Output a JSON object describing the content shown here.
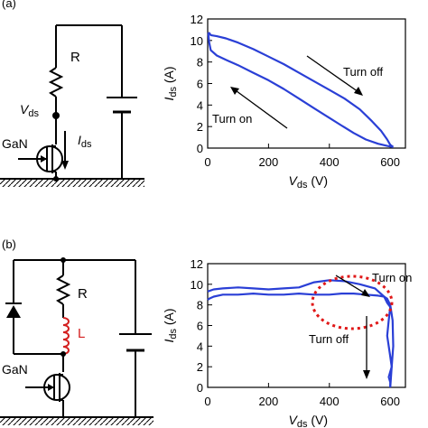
{
  "panel_a": {
    "label": "(a)",
    "circuit": {
      "resistor": "R",
      "node_voltage": "V",
      "node_voltage_sub": "ds",
      "device": "GaN",
      "current": "I",
      "current_sub": "ds"
    }
  },
  "panel_b": {
    "label": "(b)",
    "circuit": {
      "resistor": "R",
      "inductor": "L",
      "device": "GaN"
    }
  },
  "colors": {
    "trace": "#2a3fd6",
    "inductor": "#d42020",
    "highlight": "#e01818",
    "axis": "#000000"
  },
  "chart_data": [
    {
      "type": "line",
      "xlabel": "V",
      "xlabel_sub": "ds",
      "xlabel_unit": "(V)",
      "ylabel": "I",
      "ylabel_sub": "ds",
      "ylabel_unit": "(A)",
      "xlim": [
        0,
        650
      ],
      "ylim": [
        0,
        12
      ],
      "xticks": [
        0,
        200,
        400,
        600
      ],
      "yticks": [
        0,
        2,
        4,
        6,
        8,
        10,
        12
      ],
      "annotations": [
        "Turn off",
        "Turn on"
      ],
      "series": [
        {
          "x": [
            0,
            5,
            10,
            30,
            60,
            100,
            150,
            200,
            250,
            300,
            350,
            400,
            450,
            500,
            540,
            570,
            590,
            600,
            610
          ],
          "y": [
            10.6,
            10.7,
            10.5,
            10.4,
            10.2,
            9.8,
            9.2,
            8.5,
            7.8,
            7.0,
            6.2,
            5.4,
            4.6,
            3.6,
            2.5,
            1.6,
            0.8,
            0.3,
            0.1
          ]
        },
        {
          "x": [
            610,
            590,
            560,
            520,
            480,
            440,
            400,
            350,
            300,
            250,
            200,
            150,
            100,
            60,
            30,
            10,
            5,
            2
          ],
          "y": [
            0.1,
            0.2,
            0.4,
            0.8,
            1.4,
            2.1,
            2.8,
            3.7,
            4.6,
            5.5,
            6.3,
            7.0,
            7.7,
            8.2,
            8.6,
            9.1,
            9.8,
            10.6
          ]
        }
      ]
    },
    {
      "type": "line",
      "xlabel": "V",
      "xlabel_sub": "ds",
      "xlabel_unit": "(V)",
      "ylabel": "I",
      "ylabel_sub": "ds",
      "ylabel_unit": "(A)",
      "xlim": [
        0,
        650
      ],
      "ylim": [
        0,
        12
      ],
      "xticks": [
        0,
        200,
        400,
        600
      ],
      "yticks": [
        0,
        2,
        4,
        6,
        8,
        10,
        12
      ],
      "annotations": [
        "Turn on",
        "Turn off"
      ],
      "series": [
        {
          "x": [
            0,
            20,
            50,
            100,
            150,
            200,
            250,
            300,
            350,
            400,
            450,
            500,
            550,
            580,
            590,
            600
          ],
          "y": [
            9.3,
            9.5,
            9.6,
            9.7,
            9.6,
            9.5,
            9.6,
            9.7,
            10.2,
            10.4,
            10.3,
            10.0,
            9.6,
            8.8,
            8.2,
            7.8
          ]
        },
        {
          "x": [
            600,
            595,
            590,
            595,
            600,
            605,
            595,
            600,
            600
          ],
          "y": [
            7.8,
            6.5,
            5.0,
            4.0,
            3.0,
            2.0,
            1.0,
            0.5,
            0
          ]
        },
        {
          "x": [
            600,
            605,
            610,
            608,
            600,
            590,
            580,
            560,
            520,
            480,
            440,
            400,
            350,
            300,
            250,
            200,
            150,
            100,
            50,
            20,
            5,
            0
          ],
          "y": [
            0,
            2.0,
            4.0,
            6.5,
            8.0,
            8.6,
            8.8,
            8.9,
            9.0,
            9.1,
            9.1,
            9.0,
            9.0,
            9.1,
            9.0,
            9.0,
            9.1,
            9.0,
            9.0,
            8.8,
            8.6,
            8.5
          ]
        }
      ]
    }
  ]
}
